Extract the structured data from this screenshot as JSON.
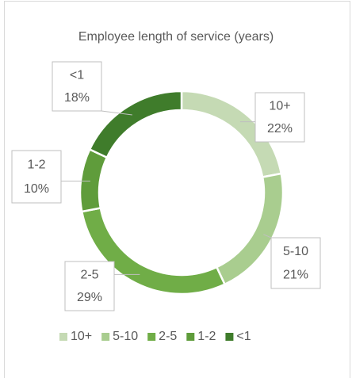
{
  "chart_data": {
    "type": "donut",
    "title": "Employee length of service (years)",
    "categories": [
      "10+",
      "5-10",
      "2-5",
      "1-2",
      "<1"
    ],
    "values": [
      22,
      21,
      29,
      10,
      18
    ],
    "value_labels": [
      "22%",
      "21%",
      "29%",
      "10%",
      "18%"
    ],
    "colors": [
      "#c5dab4",
      "#a9cd8f",
      "#70ad47",
      "#5f9c3b",
      "#3f7c2b"
    ],
    "legend": "bottom"
  }
}
